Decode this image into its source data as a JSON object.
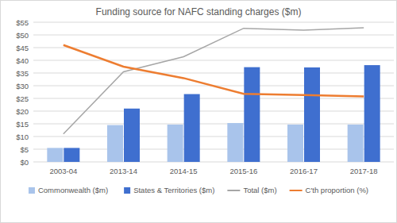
{
  "chart_data": {
    "type": "bar",
    "title": "Funding source for NAFC standing charges ($m)",
    "categories": [
      "2003-04",
      "2013-14",
      "2014-15",
      "2015-16",
      "2016-17",
      "2017-18"
    ],
    "series": [
      {
        "name": "Commonwealth ($m)",
        "type": "bar",
        "color": "#a9c4eb",
        "values": [
          5.5,
          14.5,
          14.7,
          15.3,
          14.7,
          14.7
        ]
      },
      {
        "name": "States & Territories ($m)",
        "type": "bar",
        "color": "#3f6fcf",
        "values": [
          5.5,
          21,
          26.7,
          37.3,
          37.2,
          38.1
        ]
      },
      {
        "name": "Total ($m)",
        "type": "line",
        "color": "#a6a6a6",
        "values": [
          11,
          35.5,
          41.4,
          52.6,
          51.9,
          52.8
        ]
      },
      {
        "name": "C'th proportion (%)",
        "type": "line",
        "color": "#ed7d31",
        "values": [
          46,
          37.5,
          33,
          26.8,
          26.3,
          25.8
        ]
      }
    ],
    "ylim": [
      0,
      55
    ],
    "yticks": [
      {
        "value": 0,
        "label": "$0"
      },
      {
        "value": 5,
        "label": "$5"
      },
      {
        "value": 10,
        "label": "$10"
      },
      {
        "value": 15,
        "label": "$15"
      },
      {
        "value": 20,
        "label": "$20"
      },
      {
        "value": 25,
        "label": "$25"
      },
      {
        "value": 30,
        "label": "$30"
      },
      {
        "value": 35,
        "label": "$35"
      },
      {
        "value": 40,
        "label": "$40"
      },
      {
        "value": 45,
        "label": "$45"
      },
      {
        "value": 50,
        "label": "$50"
      },
      {
        "value": 55,
        "label": "$55"
      }
    ],
    "grid": true,
    "legend": "bottom"
  }
}
